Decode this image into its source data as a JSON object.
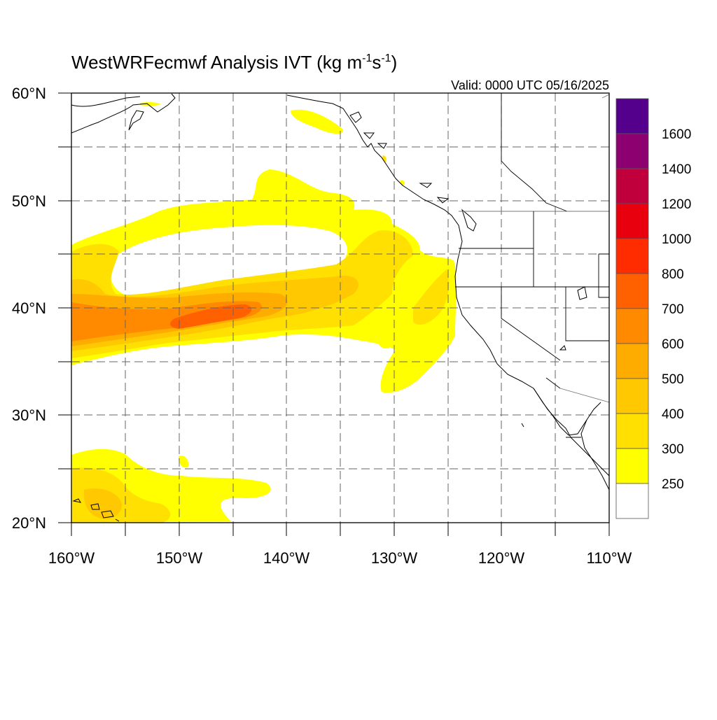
{
  "map": {
    "title": "WestWRFecmwf Analysis IVT (kg m",
    "title_sup1": "-1",
    "title_mid": "s",
    "title_sup2": "-1",
    "title_end": ")",
    "valid": "Valid: 0000 UTC 05/16/2025",
    "lat_labels": [
      "60°N",
      "50°N",
      "40°N",
      "30°N",
      "20°N"
    ],
    "lon_labels": [
      "160°W",
      "150°W",
      "140°W",
      "130°W",
      "120°W",
      "110°W"
    ]
  },
  "colorbar": {
    "labels": [
      "1600",
      "1400",
      "1200",
      "1000",
      "800",
      "700",
      "600",
      "500",
      "400",
      "300",
      "250"
    ],
    "colors": [
      "#55008c",
      "#8c0070",
      "#c0003c",
      "#e8000e",
      "#ff2c00",
      "#ff6000",
      "#ff8a00",
      "#ffac00",
      "#ffc800",
      "#ffe000",
      "#ffff00",
      "#ffffff"
    ]
  },
  "chart_data": {
    "type": "heatmap",
    "title": "WestWRFecmwf Analysis IVT (kg m-1s-1)",
    "valid_time": "Valid: 0000 UTC 05/16/2025",
    "lon_range": [
      -160,
      -110
    ],
    "lat_range": [
      20,
      60
    ],
    "contour_levels": [
      250,
      300,
      400,
      500,
      600,
      700,
      800,
      1000,
      1200,
      1400,
      1600
    ],
    "features": [
      {
        "name": "atmospheric river core",
        "max_ivt": 700,
        "lon": -145,
        "lat": 40
      },
      {
        "name": "secondary plume",
        "max_ivt": 400,
        "lon": -127,
        "lat": 38
      }
    ]
  }
}
